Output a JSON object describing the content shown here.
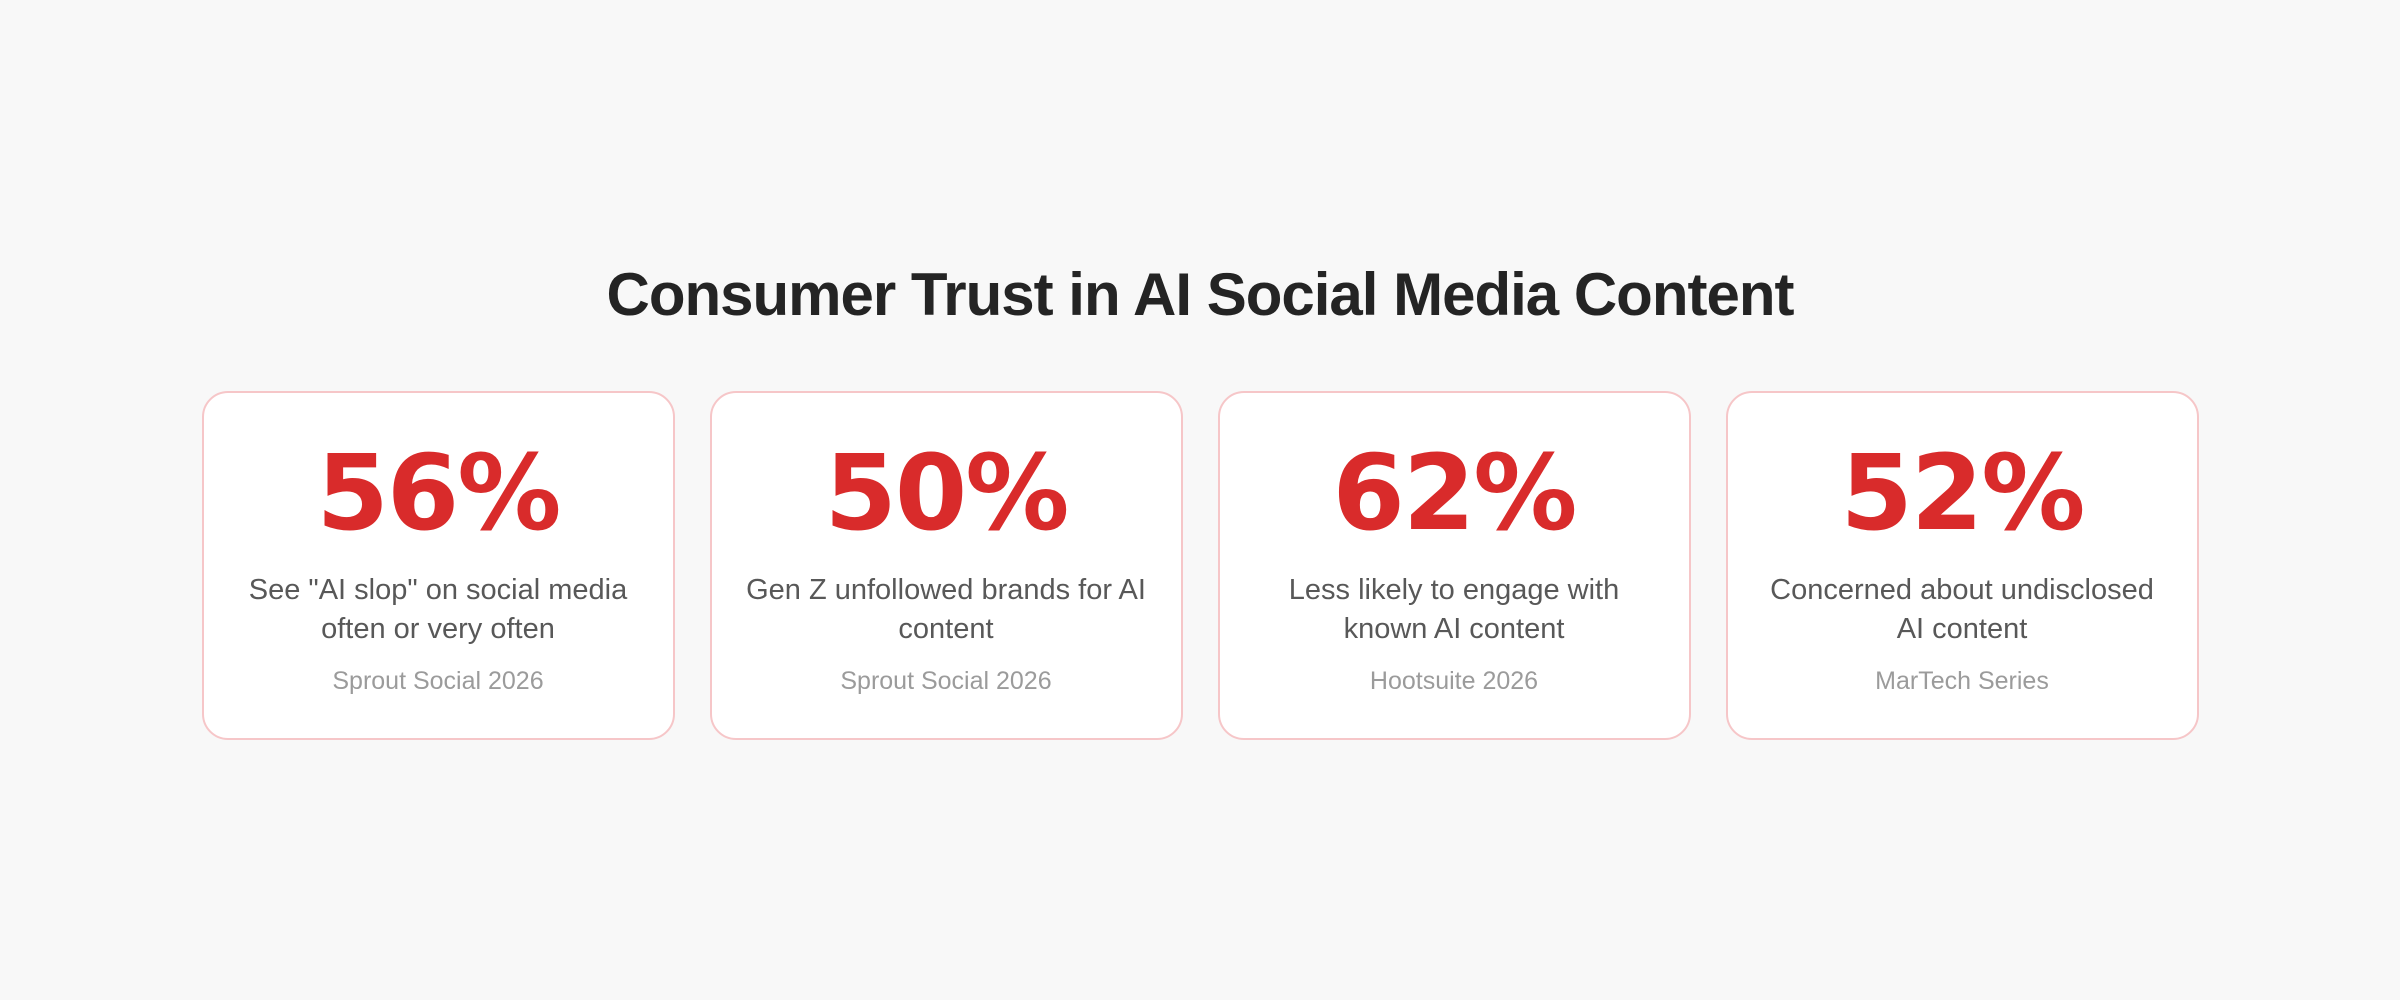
{
  "page": {
    "title": "Consumer Trust in AI Social Media Content",
    "background_color": "#F8F8F8"
  },
  "theme": {
    "accent_red": "#D92B2B",
    "card_border_pink": "#F6C6C8",
    "card_background": "#FFFFFF",
    "title_color": "#242424",
    "description_color": "#585858",
    "source_color": "#9B9B9B"
  },
  "stats": [
    {
      "value": "56%",
      "description": "See \"AI slop\" on social media often or very often",
      "source": "Sprout Social 2026"
    },
    {
      "value": "50%",
      "description": "Gen Z unfollowed brands for AI content",
      "source": "Sprout Social 2026"
    },
    {
      "value": "62%",
      "description": "Less likely to engage with known AI content",
      "source": "Hootsuite 2026"
    },
    {
      "value": "52%",
      "description": "Concerned about undisclosed AI content",
      "source": "MarTech Series"
    }
  ],
  "chart_data": {
    "type": "table",
    "title": "Consumer Trust in AI Social Media Content",
    "unit": "%",
    "categories": [
      "See \"AI slop\" on social media often or very often",
      "Gen Z unfollowed brands for AI content",
      "Less likely to engage with known AI content",
      "Concerned about undisclosed AI content"
    ],
    "values": [
      56,
      50,
      62,
      52
    ],
    "sources": [
      "Sprout Social 2026",
      "Sprout Social 2026",
      "Hootsuite 2026",
      "MarTech Series"
    ],
    "layout": "four stat cards in one centered row, title above"
  }
}
